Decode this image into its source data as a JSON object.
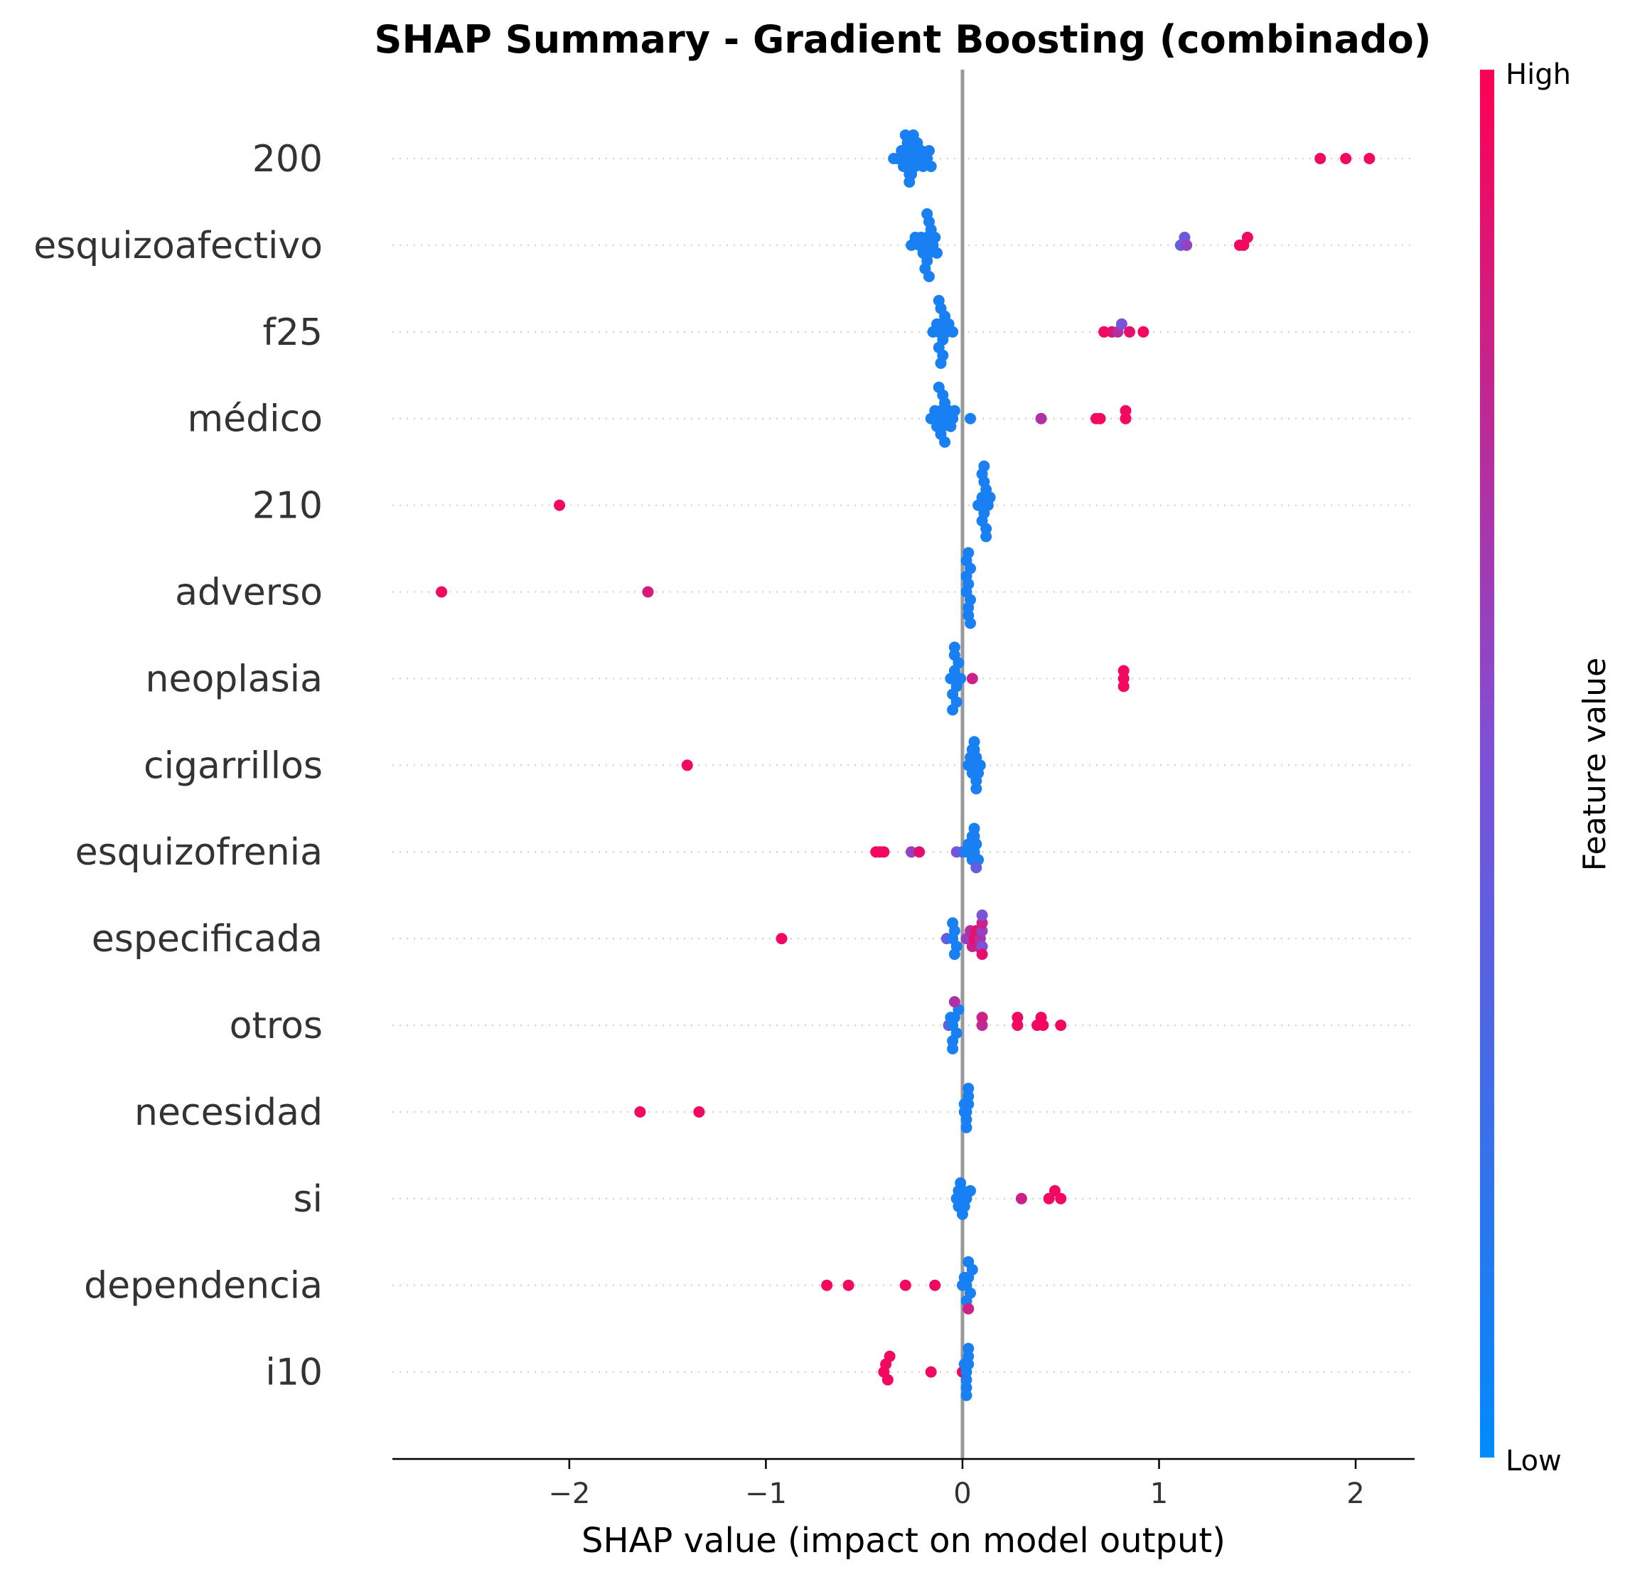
{
  "chart_data": {
    "type": "scatter",
    "subtype": "shap-summary-beeswarm",
    "title": "SHAP Summary - Gradient Boosting (combinado)",
    "xlabel": "SHAP value (impact on model output)",
    "xlim": [
      -2.9,
      2.3
    ],
    "xticks": [
      -2,
      -1,
      0,
      1,
      2
    ],
    "xtick_labels": [
      "−2",
      "−1",
      "0",
      "1",
      "2"
    ],
    "colorbar": {
      "title": "Feature value",
      "high_label": "High",
      "low_label": "Low",
      "low_color": "#008bfb",
      "mid_color": "#7c52d9",
      "high_color": "#ff0052"
    },
    "zero_line_color": "#999999",
    "features": [
      {
        "name": "200",
        "points": [
          [
            -0.35,
            0.1
          ],
          [
            -0.33,
            0.1
          ],
          [
            -0.31,
            0.1
          ],
          [
            -0.3,
            0.1
          ],
          [
            -0.29,
            0.1
          ],
          [
            -0.28,
            0.1
          ],
          [
            -0.27,
            0.1
          ],
          [
            -0.26,
            0.1
          ],
          [
            -0.25,
            0.1
          ],
          [
            -0.24,
            0.1
          ],
          [
            -0.23,
            0.1
          ],
          [
            -0.22,
            0.1
          ],
          [
            -0.21,
            0.1
          ],
          [
            -0.2,
            0.1
          ],
          [
            -0.18,
            0.1
          ],
          [
            -0.17,
            0.1
          ],
          [
            -0.16,
            0.1
          ],
          [
            -0.28,
            0.1
          ],
          [
            -0.27,
            0.1
          ],
          [
            -0.26,
            0.1
          ],
          [
            -0.29,
            0.1
          ],
          [
            -0.25,
            0.1
          ],
          [
            -0.27,
            0.1
          ],
          [
            1.82,
            0.95
          ],
          [
            1.95,
            0.95
          ],
          [
            2.07,
            0.95
          ]
        ]
      },
      {
        "name": "esquizoafectivo",
        "points": [
          [
            -0.26,
            0.1
          ],
          [
            -0.24,
            0.1
          ],
          [
            -0.22,
            0.1
          ],
          [
            -0.21,
            0.1
          ],
          [
            -0.2,
            0.1
          ],
          [
            -0.19,
            0.1
          ],
          [
            -0.18,
            0.1
          ],
          [
            -0.17,
            0.1
          ],
          [
            -0.16,
            0.1
          ],
          [
            -0.15,
            0.1
          ],
          [
            -0.14,
            0.1
          ],
          [
            -0.13,
            0.1
          ],
          [
            -0.18,
            0.1
          ],
          [
            -0.17,
            0.1
          ],
          [
            -0.19,
            0.1
          ],
          [
            -0.18,
            0.1
          ],
          [
            -0.17,
            0.1
          ],
          [
            1.11,
            0.4
          ],
          [
            1.13,
            0.45
          ],
          [
            1.14,
            0.6
          ],
          [
            1.41,
            0.95
          ],
          [
            1.43,
            0.95
          ],
          [
            1.45,
            0.95
          ]
        ]
      },
      {
        "name": "f25",
        "points": [
          [
            -0.15,
            0.1
          ],
          [
            -0.13,
            0.1
          ],
          [
            -0.12,
            0.1
          ],
          [
            -0.11,
            0.1
          ],
          [
            -0.1,
            0.1
          ],
          [
            -0.09,
            0.1
          ],
          [
            -0.08,
            0.1
          ],
          [
            -0.07,
            0.1
          ],
          [
            -0.05,
            0.1
          ],
          [
            -0.12,
            0.1
          ],
          [
            -0.11,
            0.1
          ],
          [
            -0.1,
            0.1
          ],
          [
            -0.12,
            0.1
          ],
          [
            -0.11,
            0.1
          ],
          [
            0.72,
            0.95
          ],
          [
            0.76,
            0.9
          ],
          [
            0.79,
            0.7
          ],
          [
            0.81,
            0.5
          ],
          [
            0.85,
            0.9
          ],
          [
            0.92,
            0.95
          ]
        ]
      },
      {
        "name": "médico",
        "points": [
          [
            -0.16,
            0.1
          ],
          [
            -0.15,
            0.1
          ],
          [
            -0.14,
            0.1
          ],
          [
            -0.13,
            0.1
          ],
          [
            -0.12,
            0.1
          ],
          [
            -0.11,
            0.1
          ],
          [
            -0.1,
            0.1
          ],
          [
            -0.09,
            0.1
          ],
          [
            -0.08,
            0.1
          ],
          [
            -0.07,
            0.1
          ],
          [
            -0.06,
            0.1
          ],
          [
            -0.05,
            0.1
          ],
          [
            -0.04,
            0.1
          ],
          [
            0.04,
            0.1
          ],
          [
            -0.11,
            0.1
          ],
          [
            -0.1,
            0.1
          ],
          [
            -0.09,
            0.1
          ],
          [
            -0.12,
            0.1
          ],
          [
            0.4,
            0.7
          ],
          [
            0.68,
            0.95
          ],
          [
            0.7,
            0.95
          ],
          [
            0.83,
            0.95
          ],
          [
            0.83,
            0.95
          ]
        ]
      },
      {
        "name": "210",
        "points": [
          [
            0.08,
            0.1
          ],
          [
            0.09,
            0.1
          ],
          [
            0.1,
            0.1
          ],
          [
            0.11,
            0.1
          ],
          [
            0.12,
            0.1
          ],
          [
            0.13,
            0.1
          ],
          [
            0.14,
            0.1
          ],
          [
            0.1,
            0.1
          ],
          [
            0.11,
            0.1
          ],
          [
            0.12,
            0.1
          ],
          [
            0.1,
            0.1
          ],
          [
            0.12,
            0.1
          ],
          [
            0.11,
            0.1
          ],
          [
            -2.05,
            0.95
          ]
        ]
      },
      {
        "name": "adverso",
        "points": [
          [
            0.02,
            0.1
          ],
          [
            0.03,
            0.1
          ],
          [
            0.04,
            0.1
          ],
          [
            0.02,
            0.1
          ],
          [
            0.03,
            0.1
          ],
          [
            0.04,
            0.1
          ],
          [
            0.03,
            0.1
          ],
          [
            0.02,
            0.1
          ],
          [
            0.04,
            0.1
          ],
          [
            0.03,
            0.1
          ],
          [
            -2.65,
            0.95
          ],
          [
            -1.6,
            0.85
          ]
        ]
      },
      {
        "name": "neoplasia",
        "points": [
          [
            -0.06,
            0.1
          ],
          [
            -0.05,
            0.1
          ],
          [
            -0.04,
            0.1
          ],
          [
            -0.03,
            0.1
          ],
          [
            -0.02,
            0.1
          ],
          [
            -0.01,
            0.1
          ],
          [
            -0.05,
            0.1
          ],
          [
            -0.04,
            0.1
          ],
          [
            -0.03,
            0.1
          ],
          [
            -0.04,
            0.1
          ],
          [
            -0.05,
            0.1
          ],
          [
            0.05,
            0.8
          ],
          [
            0.82,
            0.95
          ],
          [
            0.82,
            0.95
          ],
          [
            0.82,
            0.95
          ]
        ]
      },
      {
        "name": "cigarrillos",
        "points": [
          [
            0.03,
            0.1
          ],
          [
            0.04,
            0.1
          ],
          [
            0.05,
            0.1
          ],
          [
            0.06,
            0.1
          ],
          [
            0.07,
            0.1
          ],
          [
            0.08,
            0.1
          ],
          [
            0.09,
            0.1
          ],
          [
            0.05,
            0.1
          ],
          [
            0.06,
            0.1
          ],
          [
            0.07,
            0.1
          ],
          [
            0.06,
            0.1
          ],
          [
            0.07,
            0.1
          ],
          [
            -1.4,
            0.95
          ]
        ]
      },
      {
        "name": "esquizofrenia",
        "points": [
          [
            -0.44,
            0.95
          ],
          [
            -0.42,
            0.95
          ],
          [
            -0.4,
            0.95
          ],
          [
            -0.26,
            0.6
          ],
          [
            -0.22,
            0.9
          ],
          [
            -0.03,
            0.5
          ],
          [
            0.0,
            0.3
          ],
          [
            0.02,
            0.1
          ],
          [
            0.03,
            0.1
          ],
          [
            0.05,
            0.1
          ],
          [
            0.06,
            0.1
          ],
          [
            0.07,
            0.1
          ],
          [
            0.08,
            0.1
          ],
          [
            0.06,
            0.1
          ],
          [
            0.07,
            0.4
          ],
          [
            0.05,
            0.1
          ],
          [
            0.06,
            0.1
          ]
        ]
      },
      {
        "name": "especificada",
        "points": [
          [
            -0.92,
            0.95
          ],
          [
            -0.08,
            0.4
          ],
          [
            -0.05,
            0.1
          ],
          [
            -0.04,
            0.1
          ],
          [
            -0.03,
            0.1
          ],
          [
            -0.05,
            0.1
          ],
          [
            -0.04,
            0.1
          ],
          [
            0.02,
            0.6
          ],
          [
            0.04,
            0.7
          ],
          [
            0.05,
            0.8
          ],
          [
            0.06,
            0.9
          ],
          [
            0.07,
            0.9
          ],
          [
            0.08,
            0.8
          ],
          [
            0.09,
            0.7
          ],
          [
            0.1,
            0.6
          ],
          [
            0.1,
            0.5
          ],
          [
            0.1,
            0.8
          ],
          [
            0.1,
            0.9
          ],
          [
            0.1,
            0.5
          ]
        ]
      },
      {
        "name": "otros",
        "points": [
          [
            -0.07,
            0.4
          ],
          [
            -0.06,
            0.1
          ],
          [
            -0.05,
            0.1
          ],
          [
            -0.04,
            0.1
          ],
          [
            -0.03,
            0.1
          ],
          [
            -0.02,
            0.1
          ],
          [
            -0.05,
            0.1
          ],
          [
            -0.04,
            0.7
          ],
          [
            -0.05,
            0.1
          ],
          [
            0.1,
            0.75
          ],
          [
            0.1,
            0.8
          ],
          [
            0.28,
            0.95
          ],
          [
            0.28,
            0.95
          ],
          [
            0.38,
            0.95
          ],
          [
            0.4,
            0.95
          ],
          [
            0.41,
            0.95
          ],
          [
            0.5,
            0.95
          ]
        ]
      },
      {
        "name": "necesidad",
        "points": [
          [
            0.01,
            0.1
          ],
          [
            0.02,
            0.1
          ],
          [
            0.03,
            0.1
          ],
          [
            0.02,
            0.1
          ],
          [
            0.03,
            0.1
          ],
          [
            0.01,
            0.1
          ],
          [
            0.02,
            0.1
          ],
          [
            0.03,
            0.1
          ],
          [
            -1.64,
            0.95
          ],
          [
            -1.34,
            0.95
          ]
        ]
      },
      {
        "name": "si",
        "points": [
          [
            -0.03,
            0.1
          ],
          [
            -0.02,
            0.1
          ],
          [
            -0.01,
            0.1
          ],
          [
            0.0,
            0.1
          ],
          [
            0.01,
            0.1
          ],
          [
            0.02,
            0.1
          ],
          [
            0.04,
            0.1
          ],
          [
            -0.01,
            0.1
          ],
          [
            0.0,
            0.1
          ],
          [
            -0.02,
            0.1
          ],
          [
            0.3,
            0.8
          ],
          [
            0.44,
            0.95
          ],
          [
            0.47,
            0.95
          ],
          [
            0.5,
            0.95
          ]
        ]
      },
      {
        "name": "dependencia",
        "points": [
          [
            -0.69,
            0.95
          ],
          [
            -0.58,
            0.95
          ],
          [
            -0.29,
            0.95
          ],
          [
            -0.14,
            0.95
          ],
          [
            0.0,
            0.1
          ],
          [
            0.01,
            0.1
          ],
          [
            0.02,
            0.1
          ],
          [
            0.03,
            0.1
          ],
          [
            0.04,
            0.1
          ],
          [
            0.05,
            0.1
          ],
          [
            0.02,
            0.1
          ],
          [
            0.03,
            0.1
          ],
          [
            0.03,
            0.8
          ]
        ]
      },
      {
        "name": "i10",
        "points": [
          [
            -0.4,
            0.95
          ],
          [
            -0.39,
            0.95
          ],
          [
            -0.38,
            0.95
          ],
          [
            -0.37,
            0.95
          ],
          [
            -0.16,
            0.95
          ],
          [
            0.0,
            0.95
          ],
          [
            0.02,
            0.1
          ],
          [
            0.03,
            0.1
          ],
          [
            0.01,
            0.1
          ],
          [
            0.02,
            0.1
          ],
          [
            0.03,
            0.1
          ],
          [
            0.02,
            0.1
          ],
          [
            0.03,
            0.1
          ],
          [
            0.02,
            0.1
          ]
        ]
      }
    ]
  }
}
